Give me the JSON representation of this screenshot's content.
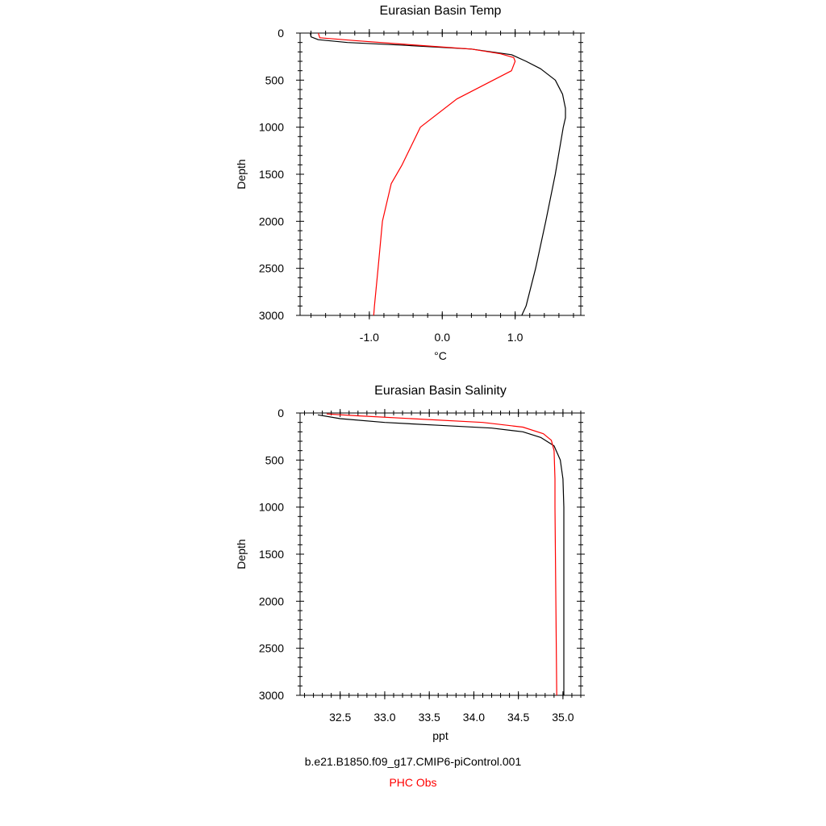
{
  "chart_data": [
    {
      "type": "line",
      "title": "Eurasian Basin Temp",
      "xlabel": "°C",
      "ylabel": "Depth",
      "xlim": [
        -1.95,
        1.9
      ],
      "ylim": [
        3000,
        0
      ],
      "y_inverted": true,
      "xticks": [
        -1.0,
        0.0,
        1.0
      ],
      "xtick_labels": [
        "-1.0",
        "0.0",
        "1.0"
      ],
      "yticks": [
        0,
        500,
        1000,
        1500,
        2000,
        2500,
        3000
      ],
      "ytick_labels": [
        "0",
        "500",
        "1000",
        "1500",
        "2000",
        "2500",
        "3000"
      ],
      "grid": false,
      "series": [
        {
          "name": "b.e21.B1850.f09_g17.CMIP6-piControl.001",
          "color": "#000000",
          "x": [
            -1.81,
            -1.8,
            -1.7,
            -1.3,
            -0.5,
            0.4,
            0.95,
            1.15,
            1.35,
            1.55,
            1.65,
            1.69,
            1.69,
            1.66,
            1.55,
            1.42,
            1.28,
            1.15,
            1.09
          ],
          "y": [
            0,
            40,
            70,
            100,
            130,
            170,
            230,
            300,
            380,
            500,
            650,
            800,
            900,
            1000,
            1500,
            2000,
            2500,
            2900,
            3000
          ]
        },
        {
          "name": "PHC Obs",
          "color": "#ff0000",
          "x": [
            -1.7,
            -1.68,
            -1.2,
            -0.5,
            0.4,
            0.8,
            0.98,
            1.0,
            0.95,
            0.2,
            -0.3,
            -0.55,
            -0.7,
            -0.82,
            -0.88,
            -0.93,
            -0.94
          ],
          "y": [
            0,
            50,
            80,
            120,
            170,
            220,
            260,
            300,
            400,
            700,
            1000,
            1400,
            1600,
            2000,
            2500,
            2900,
            3000
          ]
        }
      ]
    },
    {
      "type": "line",
      "title": "Eurasian Basin Salinity",
      "xlabel": "ppt",
      "ylabel": "Depth",
      "xlim": [
        32.05,
        35.2
      ],
      "ylim": [
        3000,
        0
      ],
      "y_inverted": true,
      "xticks": [
        32.5,
        33.0,
        33.5,
        34.0,
        34.5,
        35.0
      ],
      "xtick_labels": [
        "32.5",
        "33.0",
        "33.5",
        "34.0",
        "34.5",
        "35.0"
      ],
      "yticks": [
        0,
        500,
        1000,
        1500,
        2000,
        2500,
        3000
      ],
      "ytick_labels": [
        "0",
        "500",
        "1000",
        "1500",
        "2000",
        "2500",
        "3000"
      ],
      "grid": false,
      "series": [
        {
          "name": "b.e21.B1850.f09_g17.CMIP6-piControl.001",
          "color": "#000000",
          "x": [
            32.25,
            32.5,
            33.0,
            33.6,
            34.2,
            34.55,
            34.75,
            34.9,
            34.97,
            35.0,
            35.01,
            35.01,
            35.01
          ],
          "y": [
            20,
            60,
            100,
            130,
            160,
            200,
            260,
            350,
            500,
            700,
            1000,
            2000,
            3000
          ]
        },
        {
          "name": "PHC Obs",
          "color": "#ff0000",
          "x": [
            32.35,
            32.7,
            33.3,
            34.1,
            34.55,
            34.78,
            34.87,
            34.9,
            34.91,
            34.91,
            34.92,
            34.93
          ],
          "y": [
            10,
            30,
            60,
            100,
            150,
            220,
            290,
            400,
            700,
            1000,
            2000,
            3000
          ]
        }
      ]
    }
  ],
  "legend": {
    "model_label": "b.e21.B1850.f09_g17.CMIP6-piControl.001",
    "model_color": "#000000",
    "obs_label": "PHC Obs",
    "obs_color": "#ff0000"
  }
}
